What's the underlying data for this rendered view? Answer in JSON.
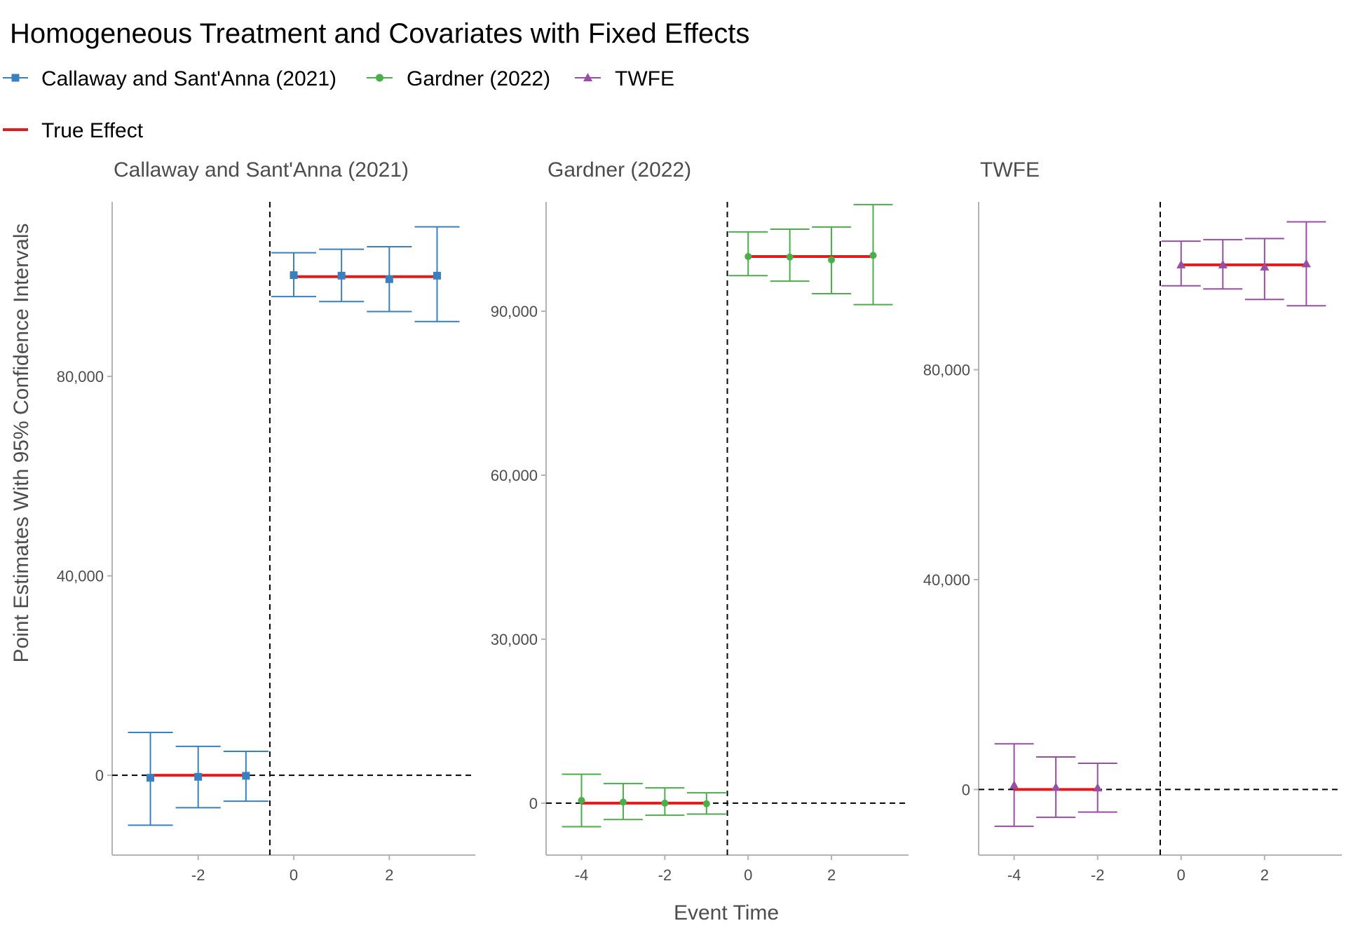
{
  "title": "Homogeneous Treatment and Covariates with Fixed Effects",
  "xlabel": "Event Time",
  "ylabel": "Point Estimates With 95% Confidence Intervals",
  "legend": {
    "placement": "top-left",
    "items": [
      {
        "label": "Callaway and Sant'Anna (2021)",
        "color": "#3a7fc0",
        "shape": "square"
      },
      {
        "label": "Gardner (2022)",
        "color": "#4aae4a",
        "shape": "circle"
      },
      {
        "label": "TWFE",
        "color": "#984ea3",
        "shape": "triangle"
      }
    ],
    "true_effect": {
      "label": "True Effect",
      "color": "#e41a1c"
    }
  },
  "chart_data": [
    {
      "type": "scatter",
      "title": "Callaway and Sant'Anna (2021)",
      "color": "#3a7fc0",
      "shape": "square",
      "xlim": [
        -3.8,
        3.8
      ],
      "ylim": [
        -16000,
        115000
      ],
      "xticks": [
        -2,
        0,
        2
      ],
      "yticks": [
        0,
        40000,
        80000
      ],
      "ytick_labels": [
        "0",
        "40,000",
        "80,000"
      ],
      "points": [
        {
          "x": -3,
          "y": -500,
          "lo": -10000,
          "hi": 8600
        },
        {
          "x": -2,
          "y": -300,
          "lo": -6500,
          "hi": 5800
        },
        {
          "x": -1,
          "y": -100,
          "lo": -5200,
          "hi": 4800
        },
        {
          "x": 0,
          "y": 100300,
          "lo": 96000,
          "hi": 104800
        },
        {
          "x": 1,
          "y": 100200,
          "lo": 95000,
          "hi": 105500
        },
        {
          "x": 2,
          "y": 99500,
          "lo": 93000,
          "hi": 106000
        },
        {
          "x": 3,
          "y": 100200,
          "lo": 91000,
          "hi": 110000
        }
      ],
      "true_effect": [
        {
          "x_from": -3,
          "x_to": -1,
          "y": 0
        },
        {
          "x_from": 0,
          "x_to": 3,
          "y": 100000
        }
      ],
      "vline_x": -0.5,
      "hline_y": 0
    },
    {
      "type": "scatter",
      "title": "Gardner (2022)",
      "color": "#4aae4a",
      "shape": "circle",
      "xlim": [
        -4.85,
        3.85
      ],
      "ylim": [
        -9500,
        110000
      ],
      "xticks": [
        -4,
        -2,
        0,
        2
      ],
      "yticks": [
        0,
        30000,
        60000,
        90000
      ],
      "ytick_labels": [
        "0",
        "30,000",
        "60,000",
        "90,000"
      ],
      "points": [
        {
          "x": -4,
          "y": 500,
          "lo": -4300,
          "hi": 5300
        },
        {
          "x": -3,
          "y": 200,
          "lo": -3000,
          "hi": 3600
        },
        {
          "x": -2,
          "y": 0,
          "lo": -2200,
          "hi": 2800
        },
        {
          "x": -1,
          "y": -100,
          "lo": -2000,
          "hi": 1900
        },
        {
          "x": 0,
          "y": 100000,
          "lo": 96500,
          "hi": 104500
        },
        {
          "x": 1,
          "y": 99900,
          "lo": 95500,
          "hi": 105000
        },
        {
          "x": 2,
          "y": 99400,
          "lo": 93200,
          "hi": 105400
        },
        {
          "x": 3,
          "y": 100200,
          "lo": 91200,
          "hi": 109500
        }
      ],
      "true_effect": [
        {
          "x_from": -4,
          "x_to": -1,
          "y": 0
        },
        {
          "x_from": 0,
          "x_to": 3,
          "y": 100000
        }
      ],
      "vline_x": -0.5,
      "hline_y": 0
    },
    {
      "type": "scatter",
      "title": "TWFE",
      "color": "#984ea3",
      "shape": "triangle",
      "xlim": [
        -4.85,
        3.85
      ],
      "ylim": [
        -12500,
        112000
      ],
      "xticks": [
        -4,
        -2,
        0,
        2
      ],
      "yticks": [
        0,
        40000,
        80000
      ],
      "ytick_labels": [
        "0",
        "40,000",
        "80,000"
      ],
      "points": [
        {
          "x": -4,
          "y": 800,
          "lo": -7000,
          "hi": 8700
        },
        {
          "x": -3,
          "y": 400,
          "lo": -5300,
          "hi": 6200
        },
        {
          "x": -2,
          "y": 300,
          "lo": -4300,
          "hi": 5000
        },
        {
          "x": 0,
          "y": 100000,
          "lo": 96000,
          "hi": 104500
        },
        {
          "x": 1,
          "y": 100000,
          "lo": 95400,
          "hi": 104800
        },
        {
          "x": 2,
          "y": 99600,
          "lo": 93400,
          "hi": 105000
        },
        {
          "x": 3,
          "y": 100200,
          "lo": 92200,
          "hi": 108200
        }
      ],
      "true_effect": [
        {
          "x_from": -4,
          "x_to": -2,
          "y": 0
        },
        {
          "x_from": 0,
          "x_to": 3,
          "y": 100000
        }
      ],
      "vline_x": -0.5,
      "hline_y": 0
    }
  ]
}
